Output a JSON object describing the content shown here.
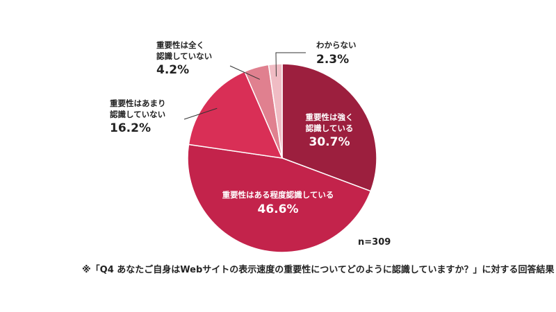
{
  "chart_data": {
    "type": "pie",
    "slices": [
      {
        "label_lines": [
          "重要性は強く",
          "認識している"
        ],
        "value": 30.7,
        "value_label": "30.7%",
        "color": "#9c1f3e"
      },
      {
        "label_lines": [
          "重要性はある程度認識している"
        ],
        "value": 46.6,
        "value_label": "46.6%",
        "color": "#c3234b"
      },
      {
        "label_lines": [
          "重要性はあまり",
          "認識していない"
        ],
        "value": 16.2,
        "value_label": "16.2%",
        "color": "#d92f56"
      },
      {
        "label_lines": [
          "重要性は全く",
          "認識していない"
        ],
        "value": 4.2,
        "value_label": "4.2%",
        "color": "#e0808f"
      },
      {
        "label_lines": [
          "わからない"
        ],
        "value": 2.3,
        "value_label": "2.3%",
        "color": "#f0bcc4"
      }
    ],
    "sample_size": "n=309",
    "footnote": "※「Q4 あなたご自身はWebサイトの表示速度の重要性についてどのように認識していますか？」に対する回答結果"
  }
}
